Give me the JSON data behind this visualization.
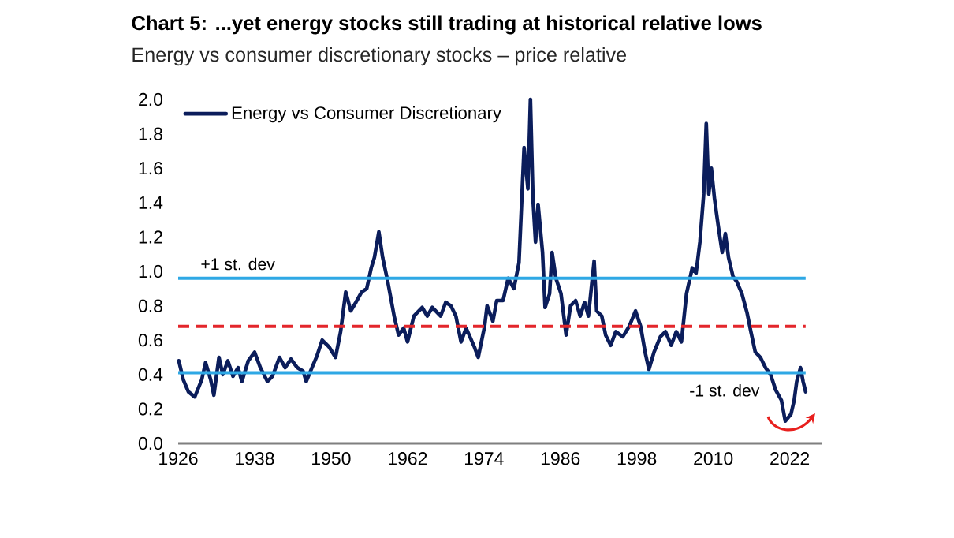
{
  "chart_data": {
    "type": "line",
    "title": "Chart 5: ...yet energy stocks still trading at historical relative lows",
    "subtitle": "Energy vs consumer discretionary stocks – price relative",
    "xlim": [
      1926,
      2027
    ],
    "xticks": [
      1926,
      1938,
      1950,
      1962,
      1974,
      1986,
      1998,
      2010,
      2022
    ],
    "ylim": [
      0,
      2
    ],
    "yticks": [
      {
        "value": 0,
        "label": "0.0"
      },
      0.2,
      0.4,
      0.6,
      0.8,
      {
        "value": 1,
        "label": "1.0"
      },
      1.2,
      1.4,
      1.6,
      1.8,
      {
        "value": 2,
        "label": "2.0"
      }
    ],
    "legend": "top left",
    "marker": "none",
    "line_style": "solid",
    "series": [
      {
        "name": "Energy vs Consumer Discretionary",
        "color": "#0b1d5b",
        "x": [
          1926.1,
          1926.8,
          1927.6,
          1928.6,
          1929.7,
          1930.3,
          1931.1,
          1931.6,
          1932.4,
          1933.0,
          1933.8,
          1934.6,
          1935.4,
          1936.0,
          1937.0,
          1938.0,
          1938.9,
          1940.0,
          1940.8,
          1941.9,
          1942.8,
          1943.7,
          1944.7,
          1945.6,
          1946.1,
          1947.0,
          1947.8,
          1948.6,
          1949.7,
          1950.7,
          1951.5,
          1952.3,
          1953.1,
          1953.9,
          1954.8,
          1955.6,
          1956.3,
          1956.8,
          1957.5,
          1958.1,
          1958.9,
          1959.9,
          1960.6,
          1961.4,
          1962.0,
          1963.0,
          1964.3,
          1965.1,
          1965.9,
          1967.2,
          1968.0,
          1968.8,
          1969.6,
          1970.4,
          1971.2,
          1972.5,
          1973.1,
          1974.1,
          1974.5,
          1975.4,
          1976.0,
          1977.0,
          1977.8,
          1978.7,
          1979.5,
          1980.3,
          1980.9,
          1981.3,
          1981.7,
          1982.1,
          1982.5,
          1983.2,
          1983.6,
          1984.3,
          1984.7,
          1985.3,
          1986.1,
          1986.9,
          1987.6,
          1988.4,
          1989.1,
          1989.8,
          1990.4,
          1991.3,
          1991.7,
          1992.5,
          1993.1,
          1993.9,
          1994.7,
          1995.8,
          1996.8,
          1997.8,
          1998.6,
          1999.3,
          1999.9,
          2000.7,
          2001.7,
          2002.5,
          2003.4,
          2004.2,
          2005.0,
          2005.8,
          2006.7,
          2007.3,
          2007.9,
          2008.5,
          2008.9,
          2009.3,
          2009.7,
          2010.2,
          2010.8,
          2011.4,
          2011.9,
          2012.4,
          2013.1,
          2013.7,
          2014.5,
          2015.3,
          2015.9,
          2016.6,
          2017.4,
          2018.2,
          2019.0,
          2019.8,
          2020.7,
          2021.3,
          2022.2,
          2022.7,
          2023.1,
          2023.7,
          2024.1,
          2024.5
        ],
        "values": [
          0.48,
          0.37,
          0.3,
          0.27,
          0.37,
          0.47,
          0.37,
          0.28,
          0.5,
          0.4,
          0.48,
          0.39,
          0.44,
          0.36,
          0.48,
          0.53,
          0.44,
          0.36,
          0.39,
          0.5,
          0.44,
          0.49,
          0.44,
          0.42,
          0.36,
          0.44,
          0.51,
          0.6,
          0.56,
          0.5,
          0.65,
          0.88,
          0.77,
          0.82,
          0.88,
          0.9,
          1.02,
          1.08,
          1.23,
          1.08,
          0.94,
          0.74,
          0.63,
          0.67,
          0.59,
          0.74,
          0.79,
          0.74,
          0.79,
          0.74,
          0.82,
          0.8,
          0.74,
          0.59,
          0.67,
          0.56,
          0.5,
          0.68,
          0.8,
          0.71,
          0.83,
          0.83,
          0.96,
          0.9,
          1.05,
          1.72,
          1.48,
          2.0,
          1.42,
          1.17,
          1.39,
          1.11,
          0.79,
          0.87,
          1.11,
          0.96,
          0.87,
          0.63,
          0.8,
          0.83,
          0.74,
          0.82,
          0.74,
          1.06,
          0.77,
          0.74,
          0.63,
          0.57,
          0.65,
          0.62,
          0.68,
          0.77,
          0.68,
          0.53,
          0.43,
          0.53,
          0.62,
          0.65,
          0.57,
          0.65,
          0.59,
          0.87,
          1.02,
          0.99,
          1.17,
          1.45,
          1.86,
          1.45,
          1.6,
          1.42,
          1.26,
          1.11,
          1.22,
          1.08,
          0.97,
          0.94,
          0.87,
          0.76,
          0.65,
          0.53,
          0.5,
          0.44,
          0.4,
          0.31,
          0.25,
          0.13,
          0.17,
          0.25,
          0.36,
          0.44,
          0.36,
          0.3
        ]
      }
    ],
    "ref_lines": [
      {
        "axis": "y",
        "value": 0.96,
        "label": "+1 st. dev",
        "color": "#2ea8e5"
      },
      {
        "axis": "y",
        "value": 0.68,
        "color": "#e3262b",
        "line_style": "dashed"
      },
      {
        "axis": "y",
        "value": 0.41,
        "label": "-1 st. dev",
        "color": "#2ea8e5"
      }
    ]
  }
}
